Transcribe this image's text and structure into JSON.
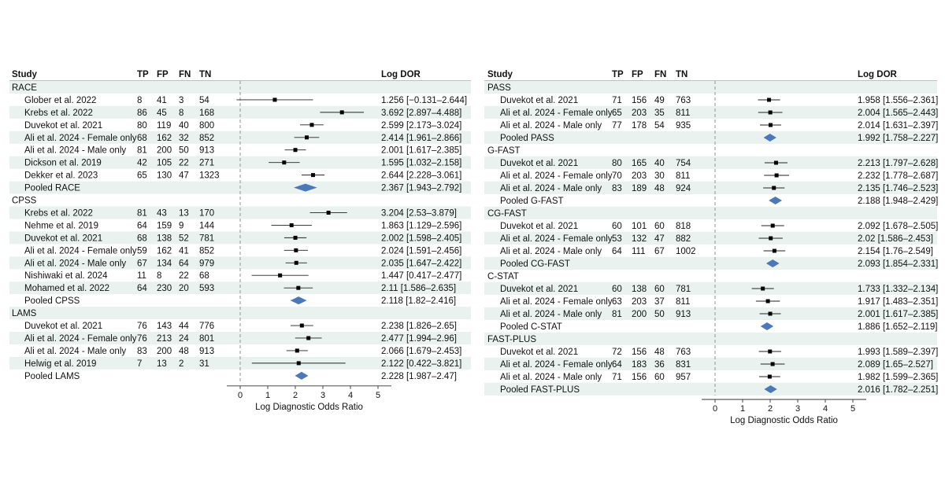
{
  "chart_data": [
    {
      "type": "forest",
      "columns": [
        "Study",
        "TP",
        "FP",
        "FN",
        "TN",
        "Log DOR"
      ],
      "xlabel": "Log Diagnostic Odds Ratio",
      "xlim": [
        0,
        5
      ],
      "xticks": [
        "0",
        "1",
        "2",
        "3",
        "4",
        "5"
      ],
      "colors": {
        "stripe": "#eaf2ef",
        "point": "#000000",
        "diamond": "#4a78b8",
        "refline": "#888888"
      },
      "rows": [
        {
          "kind": "group",
          "label": "RACE"
        },
        {
          "kind": "study",
          "label": "Glober et al. 2022",
          "tp": "8",
          "fp": "41",
          "fn": "3",
          "tn": "54",
          "est": 1.256,
          "lo": -0.131,
          "hi": 2.644,
          "text": "1.256 [−0.131–2.644]"
        },
        {
          "kind": "study",
          "label": "Krebs et al. 2022",
          "tp": "86",
          "fp": "45",
          "fn": "8",
          "tn": "168",
          "est": 3.692,
          "lo": 2.897,
          "hi": 4.488,
          "text": "3.692 [2.897–4.488]"
        },
        {
          "kind": "study",
          "label": "Duvekot et al. 2021",
          "tp": "80",
          "fp": "119",
          "fn": "40",
          "tn": "800",
          "est": 2.599,
          "lo": 2.173,
          "hi": 3.024,
          "text": "2.599 [2.173–3.024]"
        },
        {
          "kind": "study",
          "label": "Ali et al. 2024 - Female only",
          "tp": "68",
          "fp": "162",
          "fn": "32",
          "tn": "852",
          "est": 2.414,
          "lo": 1.961,
          "hi": 2.866,
          "text": "2.414 [1.961–2.866]"
        },
        {
          "kind": "study",
          "label": "Ali et al. 2024 - Male only",
          "tp": "81",
          "fp": "200",
          "fn": "50",
          "tn": "913",
          "est": 2.001,
          "lo": 1.617,
          "hi": 2.385,
          "text": "2.001 [1.617–2.385]"
        },
        {
          "kind": "study",
          "label": "Dickson et al. 2019",
          "tp": "42",
          "fp": "105",
          "fn": "22",
          "tn": "271",
          "est": 1.595,
          "lo": 1.032,
          "hi": 2.158,
          "text": "1.595 [1.032–2.158]"
        },
        {
          "kind": "study",
          "label": "Dekker et al. 2023",
          "tp": "65",
          "fp": "130",
          "fn": "47",
          "tn": "1323",
          "est": 2.644,
          "lo": 2.228,
          "hi": 3.061,
          "text": "2.644 [2.228–3.061]"
        },
        {
          "kind": "pooled",
          "label": "Pooled RACE",
          "est": 2.367,
          "lo": 1.943,
          "hi": 2.792,
          "text": "2.367 [1.943–2.792]"
        },
        {
          "kind": "group",
          "label": "CPSS"
        },
        {
          "kind": "study",
          "label": "Krebs et al. 2022",
          "tp": "81",
          "fp": "43",
          "fn": "13",
          "tn": "170",
          "est": 3.204,
          "lo": 2.53,
          "hi": 3.879,
          "text": "3.204 [2.53–3.879]"
        },
        {
          "kind": "study",
          "label": "Nehme et al. 2019",
          "tp": "64",
          "fp": "159",
          "fn": "9",
          "tn": "144",
          "est": 1.863,
          "lo": 1.129,
          "hi": 2.596,
          "text": "1.863 [1.129–2.596]"
        },
        {
          "kind": "study",
          "label": "Duvekot et al. 2021",
          "tp": "68",
          "fp": "138",
          "fn": "52",
          "tn": "781",
          "est": 2.002,
          "lo": 1.598,
          "hi": 2.405,
          "text": "2.002 [1.598–2.405]"
        },
        {
          "kind": "study",
          "label": "Ali et al. 2024 - Female only",
          "tp": "59",
          "fp": "162",
          "fn": "41",
          "tn": "852",
          "est": 2.024,
          "lo": 1.591,
          "hi": 2.456,
          "text": "2.024 [1.591–2.456]"
        },
        {
          "kind": "study",
          "label": "Ali et al. 2024 - Male only",
          "tp": "67",
          "fp": "134",
          "fn": "64",
          "tn": "979",
          "est": 2.035,
          "lo": 1.647,
          "hi": 2.422,
          "text": "2.035 [1.647–2.422]"
        },
        {
          "kind": "study",
          "label": "Nishiwaki et al. 2024",
          "tp": "11",
          "fp": "8",
          "fn": "22",
          "tn": "68",
          "est": 1.447,
          "lo": 0.417,
          "hi": 2.477,
          "text": "1.447 [0.417–2.477]"
        },
        {
          "kind": "study",
          "label": "Mohamed et al. 2022",
          "tp": "64",
          "fp": "230",
          "fn": "20",
          "tn": "593",
          "est": 2.11,
          "lo": 1.586,
          "hi": 2.635,
          "text": "2.11 [1.586–2.635]"
        },
        {
          "kind": "pooled",
          "label": "Pooled CPSS",
          "est": 2.118,
          "lo": 1.82,
          "hi": 2.416,
          "text": "2.118 [1.82–2.416]"
        },
        {
          "kind": "group",
          "label": "LAMS"
        },
        {
          "kind": "study",
          "label": "Duvekot et al. 2021",
          "tp": "76",
          "fp": "143",
          "fn": "44",
          "tn": "776",
          "est": 2.238,
          "lo": 1.826,
          "hi": 2.65,
          "text": "2.238 [1.826–2.65]"
        },
        {
          "kind": "study",
          "label": "Ali et al. 2024 - Female only",
          "tp": "76",
          "fp": "213",
          "fn": "24",
          "tn": "801",
          "est": 2.477,
          "lo": 1.994,
          "hi": 2.96,
          "text": "2.477 [1.994–2.96]"
        },
        {
          "kind": "study",
          "label": "Ali et al. 2024 - Male only",
          "tp": "83",
          "fp": "200",
          "fn": "48",
          "tn": "913",
          "est": 2.066,
          "lo": 1.679,
          "hi": 2.453,
          "text": "2.066 [1.679–2.453]"
        },
        {
          "kind": "study",
          "label": "Helwig et al. 2019",
          "tp": "7",
          "fp": "13",
          "fn": "2",
          "tn": "31",
          "est": 2.122,
          "lo": 0.422,
          "hi": 3.821,
          "text": "2.122 [0.422–3.821]"
        },
        {
          "kind": "pooled",
          "label": "Pooled LAMS",
          "est": 2.228,
          "lo": 1.987,
          "hi": 2.47,
          "text": "2.228 [1.987–2.47]"
        }
      ]
    },
    {
      "type": "forest",
      "columns": [
        "Study",
        "TP",
        "FP",
        "FN",
        "TN",
        "Log DOR"
      ],
      "xlabel": "Log Diagnostic Odds Ratio",
      "xlim": [
        0,
        5
      ],
      "xticks": [
        "0",
        "1",
        "2",
        "3",
        "4",
        "5"
      ],
      "colors": {
        "stripe": "#eaf2ef",
        "point": "#000000",
        "diamond": "#4a78b8",
        "refline": "#888888"
      },
      "rows": [
        {
          "kind": "group",
          "label": "PASS"
        },
        {
          "kind": "study",
          "label": "Duvekot et al. 2021",
          "tp": "71",
          "fp": "156",
          "fn": "49",
          "tn": "763",
          "est": 1.958,
          "lo": 1.556,
          "hi": 2.361,
          "text": "1.958 [1.556–2.361]"
        },
        {
          "kind": "study",
          "label": "Ali et al. 2024 - Female only",
          "tp": "65",
          "fp": "203",
          "fn": "35",
          "tn": "811",
          "est": 2.004,
          "lo": 1.565,
          "hi": 2.443,
          "text": "2.004 [1.565–2.443]"
        },
        {
          "kind": "study",
          "label": "Ali et al. 2024 - Male only",
          "tp": "77",
          "fp": "178",
          "fn": "54",
          "tn": "935",
          "est": 2.014,
          "lo": 1.631,
          "hi": 2.397,
          "text": "2.014 [1.631–2.397]"
        },
        {
          "kind": "pooled",
          "label": "Pooled PASS",
          "est": 1.992,
          "lo": 1.758,
          "hi": 2.227,
          "text": "1.992 [1.758–2.227]"
        },
        {
          "kind": "group",
          "label": "G-FAST"
        },
        {
          "kind": "study",
          "label": "Duvekot et al. 2021",
          "tp": "80",
          "fp": "165",
          "fn": "40",
          "tn": "754",
          "est": 2.213,
          "lo": 1.797,
          "hi": 2.628,
          "text": "2.213 [1.797–2.628]"
        },
        {
          "kind": "study",
          "label": "Ali et al. 2024 - Female only",
          "tp": "70",
          "fp": "203",
          "fn": "30",
          "tn": "811",
          "est": 2.232,
          "lo": 1.778,
          "hi": 2.687,
          "text": "2.232 [1.778–2.687]"
        },
        {
          "kind": "study",
          "label": "Ali et al. 2024 - Male only",
          "tp": "83",
          "fp": "189",
          "fn": "48",
          "tn": "924",
          "est": 2.135,
          "lo": 1.746,
          "hi": 2.523,
          "text": "2.135 [1.746–2.523]"
        },
        {
          "kind": "pooled",
          "label": "Pooled G-FAST",
          "est": 2.188,
          "lo": 1.948,
          "hi": 2.429,
          "text": "2.188 [1.948–2.429]"
        },
        {
          "kind": "group",
          "label": "CG-FAST"
        },
        {
          "kind": "study",
          "label": "Duvekot et al. 2021",
          "tp": "60",
          "fp": "101",
          "fn": "60",
          "tn": "818",
          "est": 2.092,
          "lo": 1.678,
          "hi": 2.505,
          "text": "2.092 [1.678–2.505]"
        },
        {
          "kind": "study",
          "label": "Ali et al. 2024 - Female only",
          "tp": "53",
          "fp": "132",
          "fn": "47",
          "tn": "882",
          "est": 2.02,
          "lo": 1.586,
          "hi": 2.453,
          "text": "2.02 [1.586–2.453]"
        },
        {
          "kind": "study",
          "label": "Ali et al. 2024 - Male only",
          "tp": "64",
          "fp": "111",
          "fn": "67",
          "tn": "1002",
          "est": 2.154,
          "lo": 1.76,
          "hi": 2.549,
          "text": "2.154 [1.76–2.549]"
        },
        {
          "kind": "pooled",
          "label": "Pooled CG-FAST",
          "est": 2.093,
          "lo": 1.854,
          "hi": 2.331,
          "text": "2.093 [1.854–2.331]"
        },
        {
          "kind": "group",
          "label": "C-STAT"
        },
        {
          "kind": "study",
          "label": "Duvekot et al. 2021",
          "tp": "60",
          "fp": "138",
          "fn": "60",
          "tn": "781",
          "est": 1.733,
          "lo": 1.332,
          "hi": 2.134,
          "text": "1.733 [1.332–2.134]"
        },
        {
          "kind": "study",
          "label": "Ali et al. 2024 - Female only",
          "tp": "63",
          "fp": "203",
          "fn": "37",
          "tn": "811",
          "est": 1.917,
          "lo": 1.483,
          "hi": 2.351,
          "text": "1.917 [1.483–2.351]"
        },
        {
          "kind": "study",
          "label": "Ali et al. 2024 - Male only",
          "tp": "81",
          "fp": "200",
          "fn": "50",
          "tn": "913",
          "est": 2.001,
          "lo": 1.617,
          "hi": 2.385,
          "text": "2.001 [1.617–2.385]"
        },
        {
          "kind": "pooled",
          "label": "Pooled C-STAT",
          "est": 1.886,
          "lo": 1.652,
          "hi": 2.119,
          "text": "1.886 [1.652–2.119]"
        },
        {
          "kind": "group",
          "label": "FAST-PLUS"
        },
        {
          "kind": "study",
          "label": "Duvekot et al. 2021",
          "tp": "72",
          "fp": "156",
          "fn": "48",
          "tn": "763",
          "est": 1.993,
          "lo": 1.589,
          "hi": 2.397,
          "text": "1.993 [1.589–2.397]"
        },
        {
          "kind": "study",
          "label": "Ali et al. 2024 - Female only",
          "tp": "64",
          "fp": "183",
          "fn": "36",
          "tn": "831",
          "est": 2.089,
          "lo": 1.65,
          "hi": 2.527,
          "text": "2.089 [1.65–2.527]"
        },
        {
          "kind": "study",
          "label": "Ali et al. 2024 - Male only",
          "tp": "71",
          "fp": "156",
          "fn": "60",
          "tn": "957",
          "est": 1.982,
          "lo": 1.599,
          "hi": 2.365,
          "text": "1.982 [1.599–2.365]"
        },
        {
          "kind": "pooled",
          "label": "Pooled FAST-PLUS",
          "est": 2.016,
          "lo": 1.782,
          "hi": 2.251,
          "text": "2.016 [1.782–2.251]"
        }
      ]
    }
  ]
}
